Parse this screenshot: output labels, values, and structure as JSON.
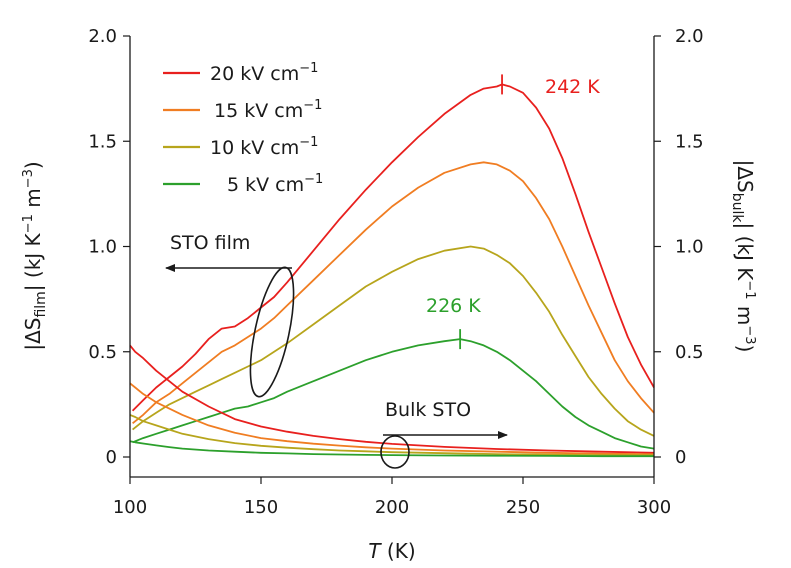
{
  "chart_data": {
    "type": "line",
    "title": "",
    "xlabel": "T",
    "xlabel_unit": "(K)",
    "ylabel_left": {
      "prefix": "|ΔS",
      "sub": "film",
      "mid": "| (kJ K",
      "sup1": "−1",
      "mid2": " m",
      "sup2": "−3",
      "end": ")"
    },
    "ylabel_right": {
      "prefix": "|ΔS",
      "sub": "bulk",
      "mid": "| (kJ K",
      "sup1": "−1",
      "mid2": " m",
      "sup2": "−3",
      "end": ")"
    },
    "xlim": [
      100,
      300
    ],
    "ylim": [
      0,
      2.0
    ],
    "x_ticks": [
      100,
      150,
      200,
      250,
      300
    ],
    "x_tick_labels": [
      "100",
      "150",
      "200",
      "250",
      "300"
    ],
    "y_ticks": [
      0,
      0.5,
      1.0,
      1.5,
      2.0
    ],
    "y_tick_labels_left": [
      "0",
      "0.5",
      "1.0",
      "1.5",
      "2.0"
    ],
    "y_tick_labels_right": [
      "0",
      "0.5",
      "1.0",
      "1.5",
      "2.0"
    ],
    "legend_position": "top-left",
    "series": [
      {
        "name": "20 kV cm−1",
        "field": "20",
        "color": "#e8201e",
        "group": "film",
        "x": [
          101,
          105,
          110,
          115,
          120,
          125,
          130,
          135,
          140,
          145,
          150,
          155,
          160,
          170,
          180,
          190,
          200,
          210,
          220,
          230,
          235,
          240,
          242,
          245,
          250,
          255,
          260,
          265,
          270,
          275,
          280,
          285,
          290,
          295,
          300
        ],
        "y": [
          0.22,
          0.27,
          0.33,
          0.38,
          0.43,
          0.49,
          0.56,
          0.61,
          0.62,
          0.66,
          0.71,
          0.76,
          0.83,
          0.98,
          1.13,
          1.27,
          1.4,
          1.52,
          1.63,
          1.72,
          1.75,
          1.76,
          1.77,
          1.76,
          1.73,
          1.66,
          1.56,
          1.42,
          1.25,
          1.07,
          0.9,
          0.73,
          0.57,
          0.44,
          0.33
        ]
      },
      {
        "name": "15 kV cm−1",
        "field": "15",
        "color": "#f07d22",
        "group": "film",
        "x": [
          101,
          105,
          110,
          115,
          120,
          125,
          130,
          135,
          140,
          145,
          150,
          155,
          160,
          170,
          180,
          190,
          200,
          210,
          220,
          230,
          235,
          240,
          245,
          250,
          255,
          260,
          265,
          270,
          275,
          280,
          285,
          290,
          295,
          300
        ],
        "y": [
          0.16,
          0.2,
          0.26,
          0.3,
          0.35,
          0.4,
          0.45,
          0.5,
          0.53,
          0.57,
          0.61,
          0.66,
          0.72,
          0.84,
          0.96,
          1.08,
          1.19,
          1.28,
          1.35,
          1.39,
          1.4,
          1.39,
          1.36,
          1.31,
          1.23,
          1.13,
          1.0,
          0.86,
          0.72,
          0.59,
          0.46,
          0.36,
          0.28,
          0.21
        ]
      },
      {
        "name": "10 kV cm−1",
        "field": "10",
        "color": "#b7a51c",
        "group": "film",
        "x": [
          101,
          105,
          110,
          115,
          120,
          125,
          130,
          135,
          140,
          145,
          150,
          155,
          160,
          170,
          180,
          190,
          200,
          210,
          220,
          230,
          235,
          240,
          245,
          250,
          255,
          260,
          265,
          270,
          275,
          280,
          285,
          290,
          295,
          300
        ],
        "y": [
          0.13,
          0.17,
          0.21,
          0.25,
          0.28,
          0.31,
          0.34,
          0.37,
          0.4,
          0.43,
          0.46,
          0.5,
          0.54,
          0.63,
          0.72,
          0.81,
          0.88,
          0.94,
          0.98,
          1.0,
          0.99,
          0.96,
          0.92,
          0.86,
          0.78,
          0.69,
          0.58,
          0.48,
          0.38,
          0.3,
          0.23,
          0.17,
          0.13,
          0.1
        ]
      },
      {
        "name": "5 kV cm−1",
        "field": "5",
        "color": "#2ca02c",
        "group": "film",
        "x": [
          101,
          105,
          110,
          115,
          120,
          125,
          130,
          135,
          140,
          145,
          150,
          155,
          160,
          170,
          180,
          190,
          200,
          210,
          220,
          226,
          230,
          235,
          240,
          245,
          250,
          255,
          260,
          265,
          270,
          275,
          280,
          285,
          290,
          295,
          300
        ],
        "y": [
          0.07,
          0.09,
          0.11,
          0.13,
          0.15,
          0.17,
          0.19,
          0.21,
          0.23,
          0.24,
          0.26,
          0.28,
          0.31,
          0.36,
          0.41,
          0.46,
          0.5,
          0.53,
          0.55,
          0.56,
          0.55,
          0.53,
          0.5,
          0.46,
          0.41,
          0.36,
          0.3,
          0.24,
          0.19,
          0.15,
          0.12,
          0.09,
          0.07,
          0.05,
          0.04
        ]
      },
      {
        "name": "20 kV cm−1 bulk",
        "field": "20",
        "color": "#e8201e",
        "group": "bulk",
        "x": [
          100,
          102,
          105,
          110,
          115,
          120,
          130,
          140,
          150,
          160,
          170,
          180,
          190,
          200,
          220,
          240,
          260,
          280,
          300
        ],
        "y": [
          0.53,
          0.5,
          0.47,
          0.41,
          0.36,
          0.31,
          0.24,
          0.18,
          0.145,
          0.12,
          0.1,
          0.085,
          0.072,
          0.062,
          0.048,
          0.038,
          0.031,
          0.025,
          0.02
        ]
      },
      {
        "name": "15 kV cm−1 bulk",
        "field": "15",
        "color": "#f07d22",
        "group": "bulk",
        "x": [
          100,
          102,
          105,
          110,
          115,
          120,
          130,
          140,
          150,
          160,
          170,
          180,
          190,
          200,
          220,
          240,
          260,
          280,
          300
        ],
        "y": [
          0.35,
          0.33,
          0.3,
          0.26,
          0.23,
          0.2,
          0.15,
          0.115,
          0.09,
          0.075,
          0.063,
          0.054,
          0.046,
          0.04,
          0.031,
          0.025,
          0.02,
          0.016,
          0.013
        ]
      },
      {
        "name": "10 kV cm−1 bulk",
        "field": "10",
        "color": "#b7a51c",
        "group": "bulk",
        "x": [
          100,
          102,
          105,
          110,
          115,
          120,
          130,
          140,
          150,
          160,
          170,
          180,
          190,
          200,
          220,
          240,
          260,
          280,
          300
        ],
        "y": [
          0.2,
          0.19,
          0.17,
          0.15,
          0.13,
          0.11,
          0.085,
          0.066,
          0.053,
          0.044,
          0.037,
          0.031,
          0.027,
          0.023,
          0.018,
          0.014,
          0.011,
          0.009,
          0.008
        ]
      },
      {
        "name": "5 kV cm−1 bulk",
        "field": "5",
        "color": "#2ca02c",
        "group": "bulk",
        "x": [
          100,
          102,
          105,
          110,
          115,
          120,
          130,
          140,
          150,
          160,
          170,
          180,
          190,
          200,
          220,
          240,
          260,
          280,
          300
        ],
        "y": [
          0.075,
          0.07,
          0.064,
          0.055,
          0.047,
          0.04,
          0.031,
          0.025,
          0.02,
          0.017,
          0.014,
          0.012,
          0.01,
          0.009,
          0.007,
          0.006,
          0.005,
          0.004,
          0.004
        ]
      }
    ],
    "legend_entries": [
      {
        "label": "20 kV cm",
        "sup": "−1",
        "color": "#e8201e"
      },
      {
        "label": "15 kV cm",
        "sup": "−1",
        "color": "#f07d22"
      },
      {
        "label": "10 kV cm",
        "sup": "−1",
        "color": "#b7a51c"
      },
      {
        "label": "5 kV cm",
        "sup": "−1",
        "color": "#2ca02c"
      }
    ],
    "annotations": [
      {
        "id": "peak-242",
        "text": "242 K",
        "x": 242,
        "y": 1.77,
        "color": "#e8201e"
      },
      {
        "id": "peak-226",
        "text": "226 K",
        "x": 226,
        "y": 0.56,
        "color": "#2ca02c"
      },
      {
        "id": "film-label",
        "text": "STO film",
        "color": "#1a1a1a"
      },
      {
        "id": "bulk-label",
        "text": "Bulk STO",
        "color": "#1a1a1a"
      }
    ]
  }
}
